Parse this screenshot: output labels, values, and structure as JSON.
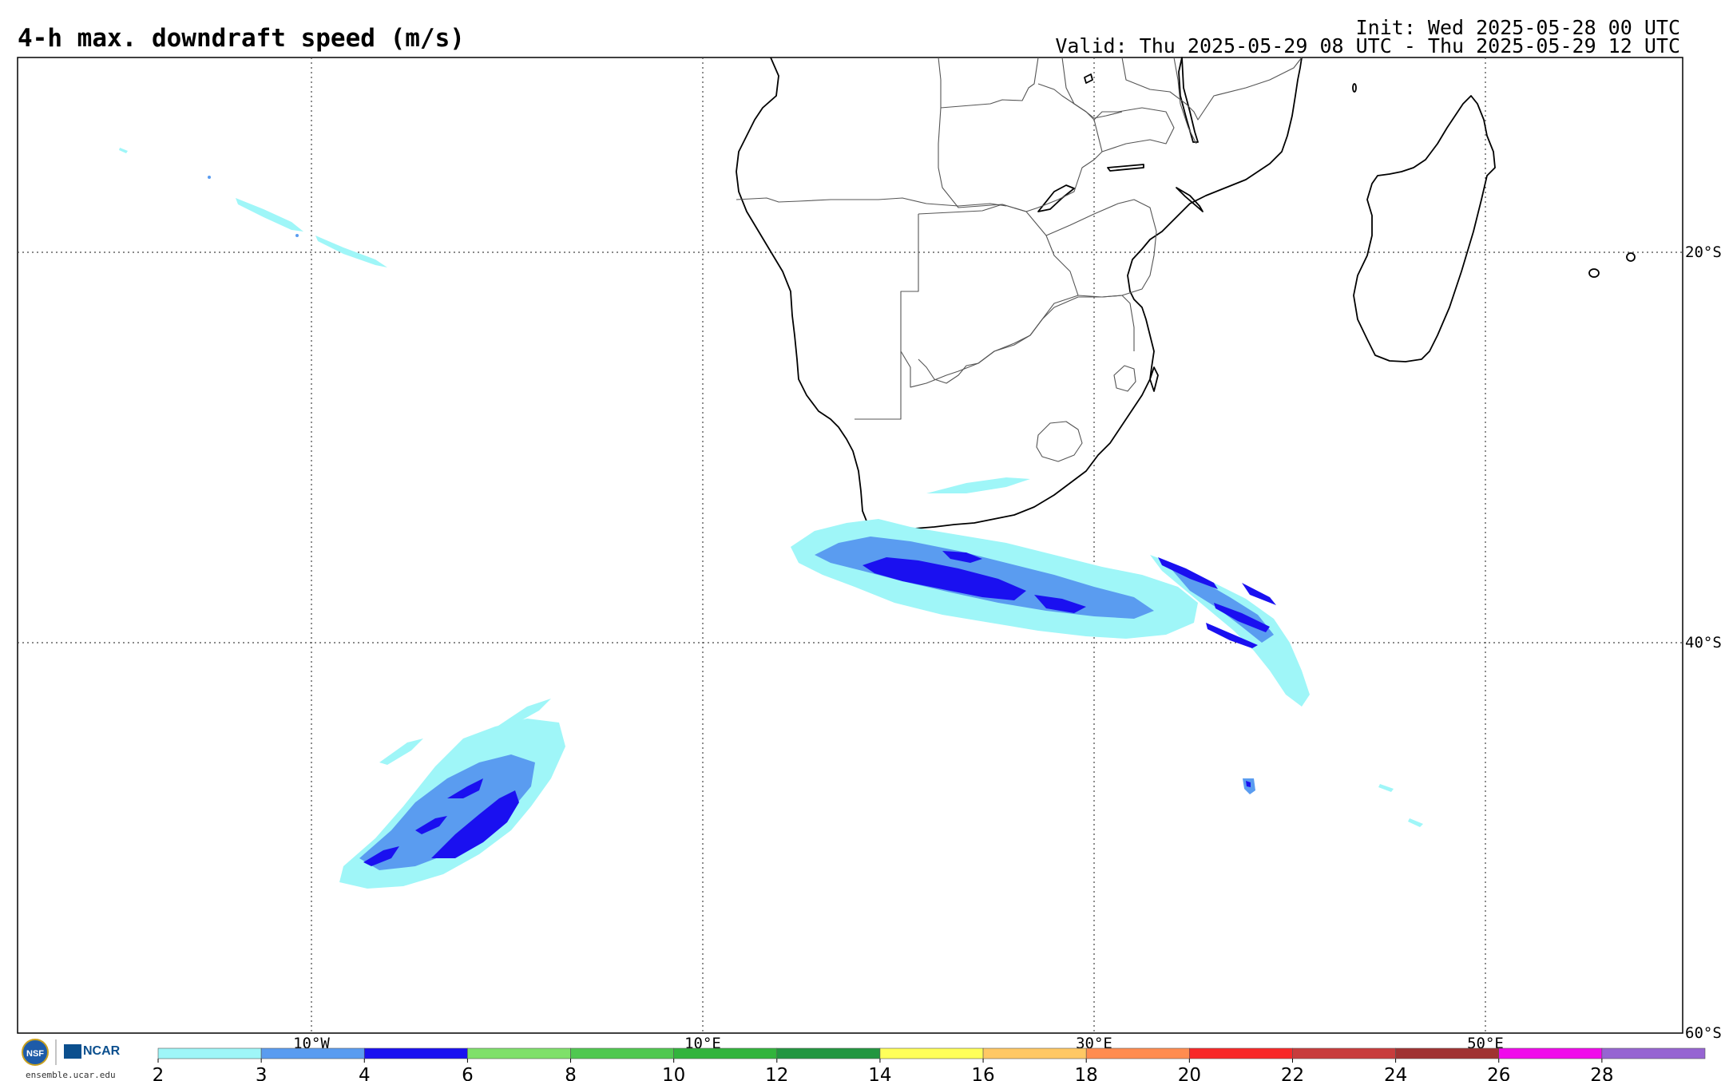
{
  "header": {
    "title": "4-h max. downdraft speed (m/s)",
    "init": "Init: Wed 2025-05-28 00 UTC",
    "valid": "Valid: Thu 2025-05-29 08 UTC - Thu 2025-05-29 12 UTC"
  },
  "map": {
    "lon_range": [
      -25,
      60
    ],
    "lat_range": [
      -60,
      -10
    ],
    "lat_labels": [
      "20°S",
      "40°S",
      "60°S"
    ],
    "lon_labels": [
      "10°W",
      "10°E",
      "30°E",
      "50°E"
    ],
    "gridlines": "dotted"
  },
  "colorbar": {
    "ticks": [
      "2",
      "3",
      "4",
      "6",
      "8",
      "10",
      "12",
      "14",
      "16",
      "18",
      "20",
      "22",
      "24",
      "26",
      "28"
    ],
    "colors": [
      "#9ff6f8",
      "#5a9cf0",
      "#1a10f0",
      "#7fe06a",
      "#50c850",
      "#32b43c",
      "#229640",
      "#ffff5a",
      "#ffc864",
      "#ff8c50",
      "#f82828",
      "#c83c3c",
      "#a03232",
      "#f00aeb",
      "#9664d2"
    ]
  },
  "footer": {
    "logo_left": "NSF",
    "logo_right": "NCAR",
    "site": "ensemble.ucar.edu"
  }
}
